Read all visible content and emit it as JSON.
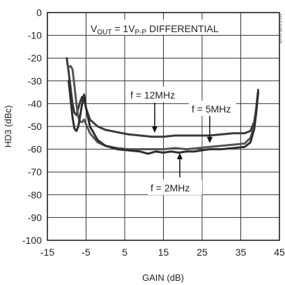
{
  "chart_data": {
    "type": "line",
    "title": "",
    "xlabel": "GAIN (dB)",
    "ylabel": "HD3 (dBc)",
    "xlim": [
      -15,
      45
    ],
    "ylim": [
      -100,
      0
    ],
    "x_ticks": [
      -15,
      -5,
      5,
      15,
      25,
      35,
      45
    ],
    "y_ticks": [
      0,
      -10,
      -20,
      -30,
      -40,
      -50,
      -60,
      -70,
      -80,
      -90,
      -100
    ],
    "x_tick_labels": [
      "-15",
      "-5",
      "5",
      "15",
      "25",
      "35",
      "45"
    ],
    "y_tick_labels": [
      "0",
      "-10",
      "-20",
      "-30",
      "-40",
      "-50",
      "-60",
      "-70",
      "-80",
      "-90",
      "-100"
    ],
    "grid": true,
    "annotations": {
      "condition": {
        "main": "V",
        "sub1": "OUT",
        "mid": " = 1V",
        "sub2": "P-P",
        "tail": " DIFFERENTIAL"
      },
      "f12": "f = 12MHz",
      "f5": "f = 5MHz",
      "f2": "f = 2MHz",
      "watermark": "MAX2035 toc05"
    },
    "series": [
      {
        "name": "f = 12MHz",
        "x": [
          -10,
          -9.5,
          -9,
          -8.5,
          -8,
          -7.5,
          -7,
          -6.5,
          -6,
          -5.5,
          -5,
          -4,
          -2,
          0,
          3,
          6,
          9,
          12,
          15,
          18,
          21,
          24,
          27,
          30,
          33,
          36,
          37.5,
          38.5,
          39,
          39.5
        ],
        "y": [
          -20,
          -26,
          -33,
          -40,
          -44,
          -45,
          -42,
          -39,
          -37,
          -38,
          -42,
          -47,
          -50,
          -51.5,
          -52.5,
          -53.5,
          -54,
          -54.5,
          -54.5,
          -54,
          -54,
          -54,
          -54,
          -53.5,
          -53,
          -53,
          -52,
          -48,
          -42,
          -34
        ]
      },
      {
        "name": "f = 5MHz",
        "x": [
          -9.5,
          -9,
          -8.5,
          -8,
          -7.5,
          -7,
          -6.5,
          -6,
          -5.5,
          -5,
          -4,
          -2,
          0,
          3,
          6,
          9,
          12,
          15,
          18,
          21,
          24,
          27,
          30,
          33,
          36,
          37.5,
          38.5,
          39,
          39.5
        ],
        "y": [
          -24,
          -23.5,
          -25,
          -32,
          -40,
          -46,
          -48,
          -48,
          -47,
          -49,
          -53,
          -57,
          -58.5,
          -59.5,
          -60,
          -60,
          -60,
          -60,
          -59.5,
          -60,
          -59.5,
          -59,
          -58.5,
          -58,
          -57.5,
          -55,
          -50,
          -43,
          -35
        ]
      },
      {
        "name": "f = 2MHz",
        "x": [
          -9.5,
          -9,
          -8.5,
          -8,
          -7.5,
          -7,
          -6.5,
          -6,
          -5.5,
          -5,
          -4,
          -2,
          0,
          3,
          6,
          9,
          11,
          13,
          15,
          17,
          19,
          21,
          23,
          25,
          27,
          30,
          33,
          36,
          37.5,
          38.5,
          39,
          39.5
        ],
        "y": [
          -30,
          -38,
          -46,
          -51,
          -52,
          -50,
          -45,
          -40,
          -36,
          -42,
          -50,
          -56,
          -58.5,
          -60,
          -60.5,
          -61,
          -62,
          -61,
          -61.5,
          -61,
          -61.5,
          -61,
          -61,
          -60.5,
          -60,
          -60,
          -59.5,
          -59,
          -57,
          -51,
          -44,
          -35
        ]
      }
    ]
  }
}
